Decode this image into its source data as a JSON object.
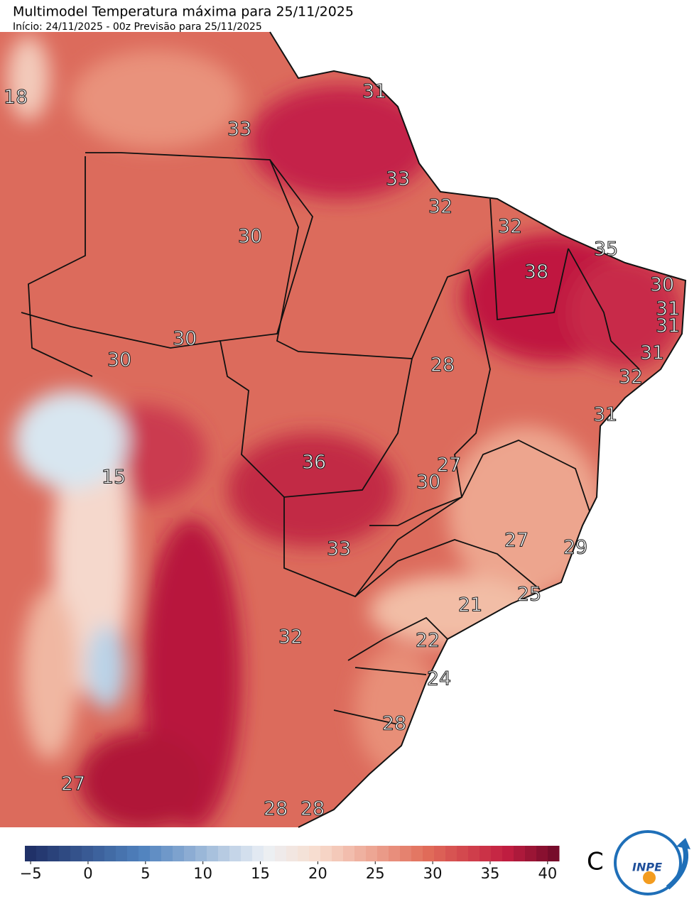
{
  "header": {
    "title": "Multimodel Temperatura máxima para 25/11/2025",
    "subtitle": "Início: 24/11/2025 - 00z  Previsão para 25/11/2025"
  },
  "map": {
    "labels": [
      18,
      31,
      33,
      33,
      32,
      30,
      32,
      35,
      38,
      30,
      31,
      31,
      30,
      30,
      28,
      31,
      32,
      31,
      36,
      27,
      15,
      30,
      27,
      29,
      33,
      25,
      21,
      32,
      22,
      24,
      28,
      27,
      28,
      28
    ]
  },
  "colorbar": {
    "range": [
      -5.5,
      41
    ],
    "unit": "C",
    "ticks": [
      {
        "value": -5,
        "label": "−5"
      },
      0,
      5,
      10,
      15,
      20,
      25,
      30,
      35,
      40
    ]
  },
  "logo": {
    "text": "INPE"
  }
}
